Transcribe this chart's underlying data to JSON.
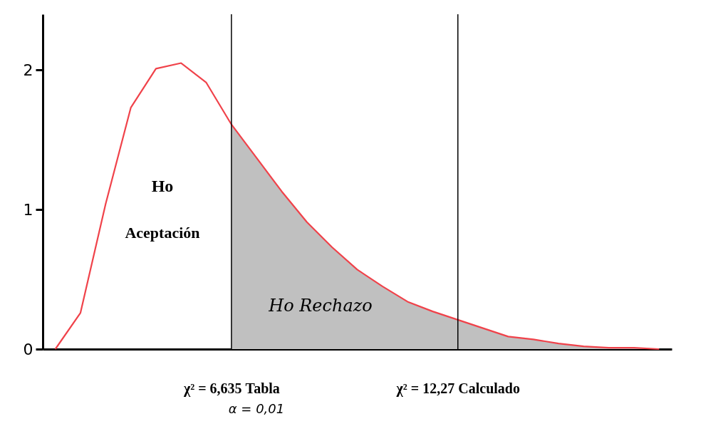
{
  "chart_data": {
    "type": "line",
    "ylim": [
      0,
      2.4
    ],
    "yticks": [
      0,
      1,
      2
    ],
    "marker": "none",
    "line_style": "solid",
    "categories": [
      null,
      null,
      null,
      null,
      null,
      null,
      null,
      "χ² =   6,635 Tabla",
      null,
      null,
      null,
      null,
      null,
      null,
      null,
      null,
      "χ² =   12,27 Calculado",
      null,
      null,
      null,
      null,
      null,
      null,
      null,
      null
    ],
    "series": [
      {
        "type": "area",
        "color": "#c0c0c0",
        "values": [
          null,
          null,
          null,
          null,
          null,
          null,
          null,
          1.61,
          1.37,
          1.13,
          0.91,
          0.73,
          0.57,
          0.45,
          0.34,
          0.27,
          0.21,
          0.15,
          0.09,
          0.07,
          0.04,
          0.02,
          0.01,
          0.01,
          0
        ]
      },
      {
        "type": "line",
        "color": "#f0424a",
        "values": [
          0,
          0.26,
          1.04,
          1.73,
          2.01,
          2.05,
          1.91,
          1.61,
          1.37,
          1.13,
          0.91,
          0.73,
          0.57,
          0.45,
          0.34,
          0.27,
          0.21,
          0.15,
          0.09,
          0.07,
          0.04,
          0.02,
          0.01,
          0.01,
          0
        ]
      }
    ],
    "ref_lines": [
      {
        "axis": "x",
        "value": "χ² =   6,635 Tabla",
        "color": "#000000"
      },
      {
        "axis": "x",
        "value": "χ² =   12,27 Calculado",
        "color": "#000000"
      }
    ],
    "annotations": [
      "Ho",
      "Aceptación",
      "Ho Rechazo",
      "α = 0,01"
    ]
  }
}
